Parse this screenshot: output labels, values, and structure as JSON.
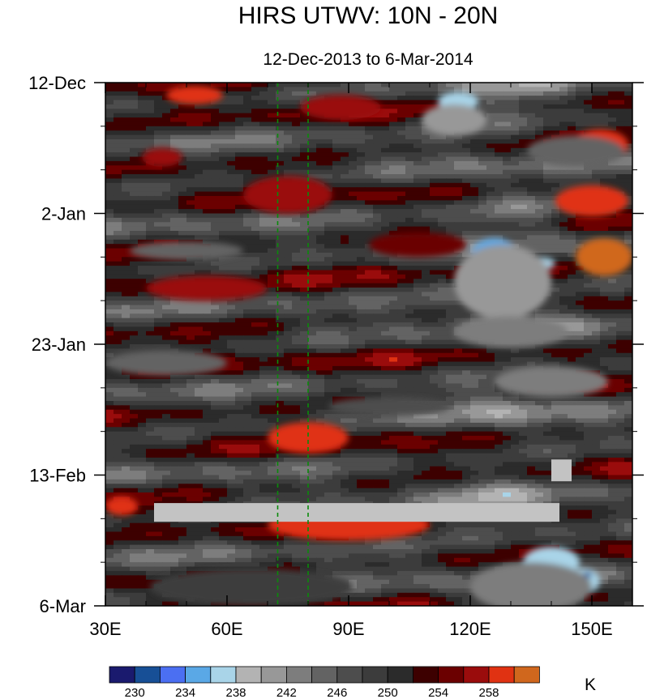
{
  "chart_data": {
    "type": "heatmap",
    "title": "HIRS UTWV: 10N - 20N",
    "subtitle": "12-Dec-2013 to 6-Mar-2014",
    "x_axis": {
      "range": [
        30,
        160
      ],
      "ticks": [
        {
          "value": 30,
          "label": "30E"
        },
        {
          "value": 60,
          "label": "60E"
        },
        {
          "value": 90,
          "label": "90E"
        },
        {
          "value": 120,
          "label": "120E"
        },
        {
          "value": 150,
          "label": "150E"
        }
      ],
      "minor_step": 10
    },
    "y_axis": {
      "range_days": [
        0,
        84
      ],
      "direction": "down",
      "ticks": [
        {
          "day": 0,
          "label": "12-Dec"
        },
        {
          "day": 21,
          "label": "2-Jan"
        },
        {
          "day": 42,
          "label": "23-Jan"
        },
        {
          "day": 63,
          "label": "13-Feb"
        },
        {
          "day": 84,
          "label": "6-Mar"
        }
      ],
      "minor_step_days": 7
    },
    "colorbar": {
      "unit": "K",
      "colors": [
        "#1a1a6e",
        "#174f96",
        "#4b6ff2",
        "#5aa8e6",
        "#a9d4e8",
        "#b3b3b3",
        "#989898",
        "#7d7d7d",
        "#636363",
        "#4d4d4d",
        "#3c3c3c",
        "#2b2b2b",
        "#3d0000",
        "#6b0000",
        "#9a0c0c",
        "#e03212",
        "#d0671d"
      ],
      "levels": [
        230,
        232,
        234,
        236,
        238,
        240,
        242,
        244,
        246,
        248,
        250,
        252,
        254,
        256,
        258,
        260
      ],
      "tick_labels": [
        {
          "value": 230,
          "label": "230"
        },
        {
          "value": 234,
          "label": "234"
        },
        {
          "value": 238,
          "label": "238"
        },
        {
          "value": 242,
          "label": "242"
        },
        {
          "value": 246,
          "label": "246"
        },
        {
          "value": 250,
          "label": "250"
        },
        {
          "value": 254,
          "label": "254"
        },
        {
          "value": 258,
          "label": "258"
        }
      ]
    },
    "reference_lines": [
      {
        "lon": 72.5,
        "color": "#0a8a0a",
        "style": "dashed"
      },
      {
        "lon": 80,
        "color": "#0a8a0a",
        "style": "dashed"
      }
    ],
    "missing_data": [
      {
        "lon": [
          42,
          142
        ],
        "day_range": [
          67.5,
          70.5
        ]
      },
      {
        "lon": [
          140,
          145
        ],
        "day_range": [
          60.5,
          64
        ]
      }
    ],
    "features": [
      {
        "lon": 117,
        "day": 3,
        "width_deg": 10,
        "height_days": 3,
        "value": 236
      },
      {
        "lon": 116,
        "day": 6,
        "width_deg": 16,
        "height_days": 5,
        "value": 240
      },
      {
        "lon": 126,
        "day": 28,
        "width_deg": 12,
        "height_days": 6,
        "value": 234
      },
      {
        "lon": 137,
        "day": 29,
        "width_deg": 8,
        "height_days": 2,
        "value": 236
      },
      {
        "lon": 128,
        "day": 35,
        "width_deg": 6,
        "height_days": 2,
        "value": 236
      },
      {
        "lon": 136,
        "day": 40,
        "width_deg": 12,
        "height_days": 2,
        "value": 236
      },
      {
        "lon": 140,
        "day": 40,
        "width_deg": 3,
        "height_days": 1,
        "value": 230
      },
      {
        "lon": 128,
        "day": 32,
        "width_deg": 24,
        "height_days": 12,
        "value": 240
      },
      {
        "lon": 130,
        "day": 40,
        "width_deg": 28,
        "height_days": 5,
        "value": 242
      },
      {
        "lon": 140,
        "day": 48,
        "width_deg": 28,
        "height_days": 5,
        "value": 242
      },
      {
        "lon": 140,
        "day": 77,
        "width_deg": 14,
        "height_days": 5,
        "value": 236
      },
      {
        "lon": 148,
        "day": 80,
        "width_deg": 8,
        "height_days": 4,
        "value": 236
      },
      {
        "lon": 149,
        "day": 79,
        "width_deg": 2,
        "height_days": 1,
        "value": 230
      },
      {
        "lon": 135,
        "day": 81,
        "width_deg": 30,
        "height_days": 8,
        "value": 242
      },
      {
        "lon": 52,
        "day": 2,
        "width_deg": 14,
        "height_days": 3,
        "value": 258
      },
      {
        "lon": 88,
        "day": 4,
        "width_deg": 20,
        "height_days": 4,
        "value": 256
      },
      {
        "lon": 152,
        "day": 10,
        "width_deg": 14,
        "height_days": 5,
        "value": 258
      },
      {
        "lon": 44,
        "day": 12,
        "width_deg": 10,
        "height_days": 3,
        "value": 256
      },
      {
        "lon": 75,
        "day": 18,
        "width_deg": 22,
        "height_days": 6,
        "value": 256
      },
      {
        "lon": 150,
        "day": 19,
        "width_deg": 18,
        "height_days": 5,
        "value": 258
      },
      {
        "lon": 153,
        "day": 28,
        "width_deg": 14,
        "height_days": 6,
        "value": 260
      },
      {
        "lon": 107,
        "day": 26,
        "width_deg": 24,
        "height_days": 4,
        "value": 254
      },
      {
        "lon": 55,
        "day": 33,
        "width_deg": 30,
        "height_days": 4,
        "value": 256
      },
      {
        "lon": 80,
        "day": 57,
        "width_deg": 20,
        "height_days": 5,
        "value": 258
      },
      {
        "lon": 90,
        "day": 71,
        "width_deg": 40,
        "height_days": 5,
        "value": 258
      },
      {
        "lon": 34,
        "day": 68,
        "width_deg": 8,
        "height_days": 3,
        "value": 258
      },
      {
        "lon": 146,
        "day": 11,
        "width_deg": 24,
        "height_days": 5,
        "value": 244
      },
      {
        "lon": 50,
        "day": 27,
        "width_deg": 28,
        "height_days": 3,
        "value": 244
      },
      {
        "lon": 45,
        "day": 45,
        "width_deg": 30,
        "height_days": 4,
        "value": 244
      },
      {
        "lon": 100,
        "day": 52,
        "width_deg": 30,
        "height_days": 3,
        "value": 246
      },
      {
        "lon": 66,
        "day": 81,
        "width_deg": 50,
        "height_days": 6,
        "value": 248
      }
    ]
  }
}
